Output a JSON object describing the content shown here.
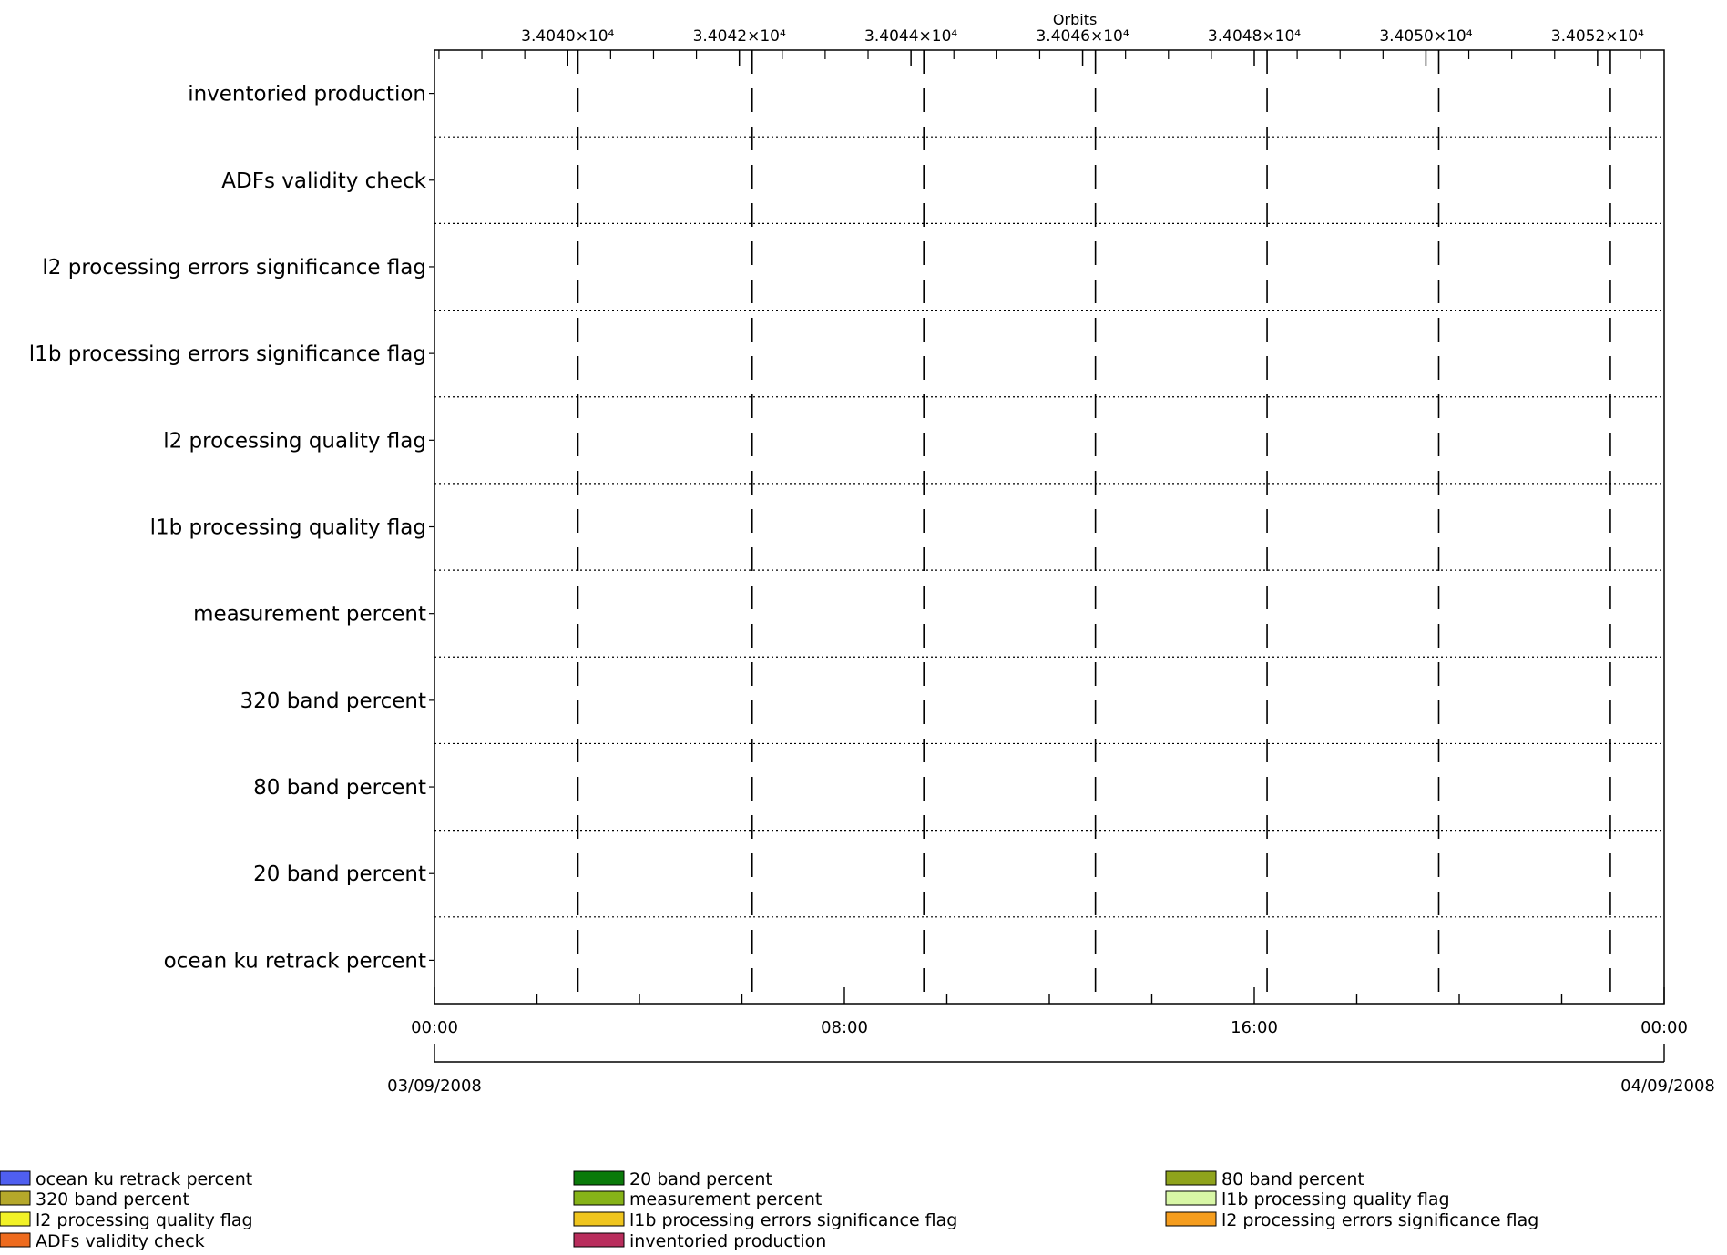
{
  "chart_data": {
    "type": "timeline",
    "top_axis": {
      "label": "Orbits",
      "ticks": [
        "3.4040×10⁴",
        "3.4042×10⁴",
        "3.4044×10⁴",
        "3.4046×10⁴",
        "3.4048×10⁴",
        "3.4050×10⁴",
        "3.4052×10⁴"
      ]
    },
    "bottom_axis": {
      "time_ticks": [
        "00:00",
        "08:00",
        "16:00",
        "00:00"
      ],
      "start_date": "03/09/2008",
      "end_date": "04/09/2008"
    },
    "rows": [
      "inventoried production",
      "ADFs validity check",
      "l2 processing errors significance flag",
      "l1b processing errors significance flag",
      "l2 processing quality flag",
      "l1b processing quality flag",
      "measurement percent",
      "320 band percent",
      "80 band percent",
      "20 band percent",
      "ocean ku retrack percent"
    ],
    "orbit_boundaries_hours": [
      2.8,
      6.2,
      9.55,
      12.9,
      16.25,
      19.6,
      22.95
    ],
    "series": [],
    "legend": [
      {
        "label": "ocean ku retrack percent",
        "color": "#4f5ff0"
      },
      {
        "label": "320 band percent",
        "color": "#b5a82a"
      },
      {
        "label": "l2 processing quality flag",
        "color": "#f2f227"
      },
      {
        "label": "ADFs validity check",
        "color": "#ee6b1e"
      },
      {
        "label": "20 band percent",
        "color": "#0a7a0a"
      },
      {
        "label": "measurement percent",
        "color": "#86b318"
      },
      {
        "label": "l1b processing errors significance flag",
        "color": "#efc51e"
      },
      {
        "label": "inventoried production",
        "color": "#b82d5c"
      },
      {
        "label": "80 band percent",
        "color": "#8fa31c"
      },
      {
        "label": "l1b processing quality flag",
        "color": "#d8f7a6"
      },
      {
        "label": "l2 processing errors significance flag",
        "color": "#f59d1e"
      }
    ]
  }
}
